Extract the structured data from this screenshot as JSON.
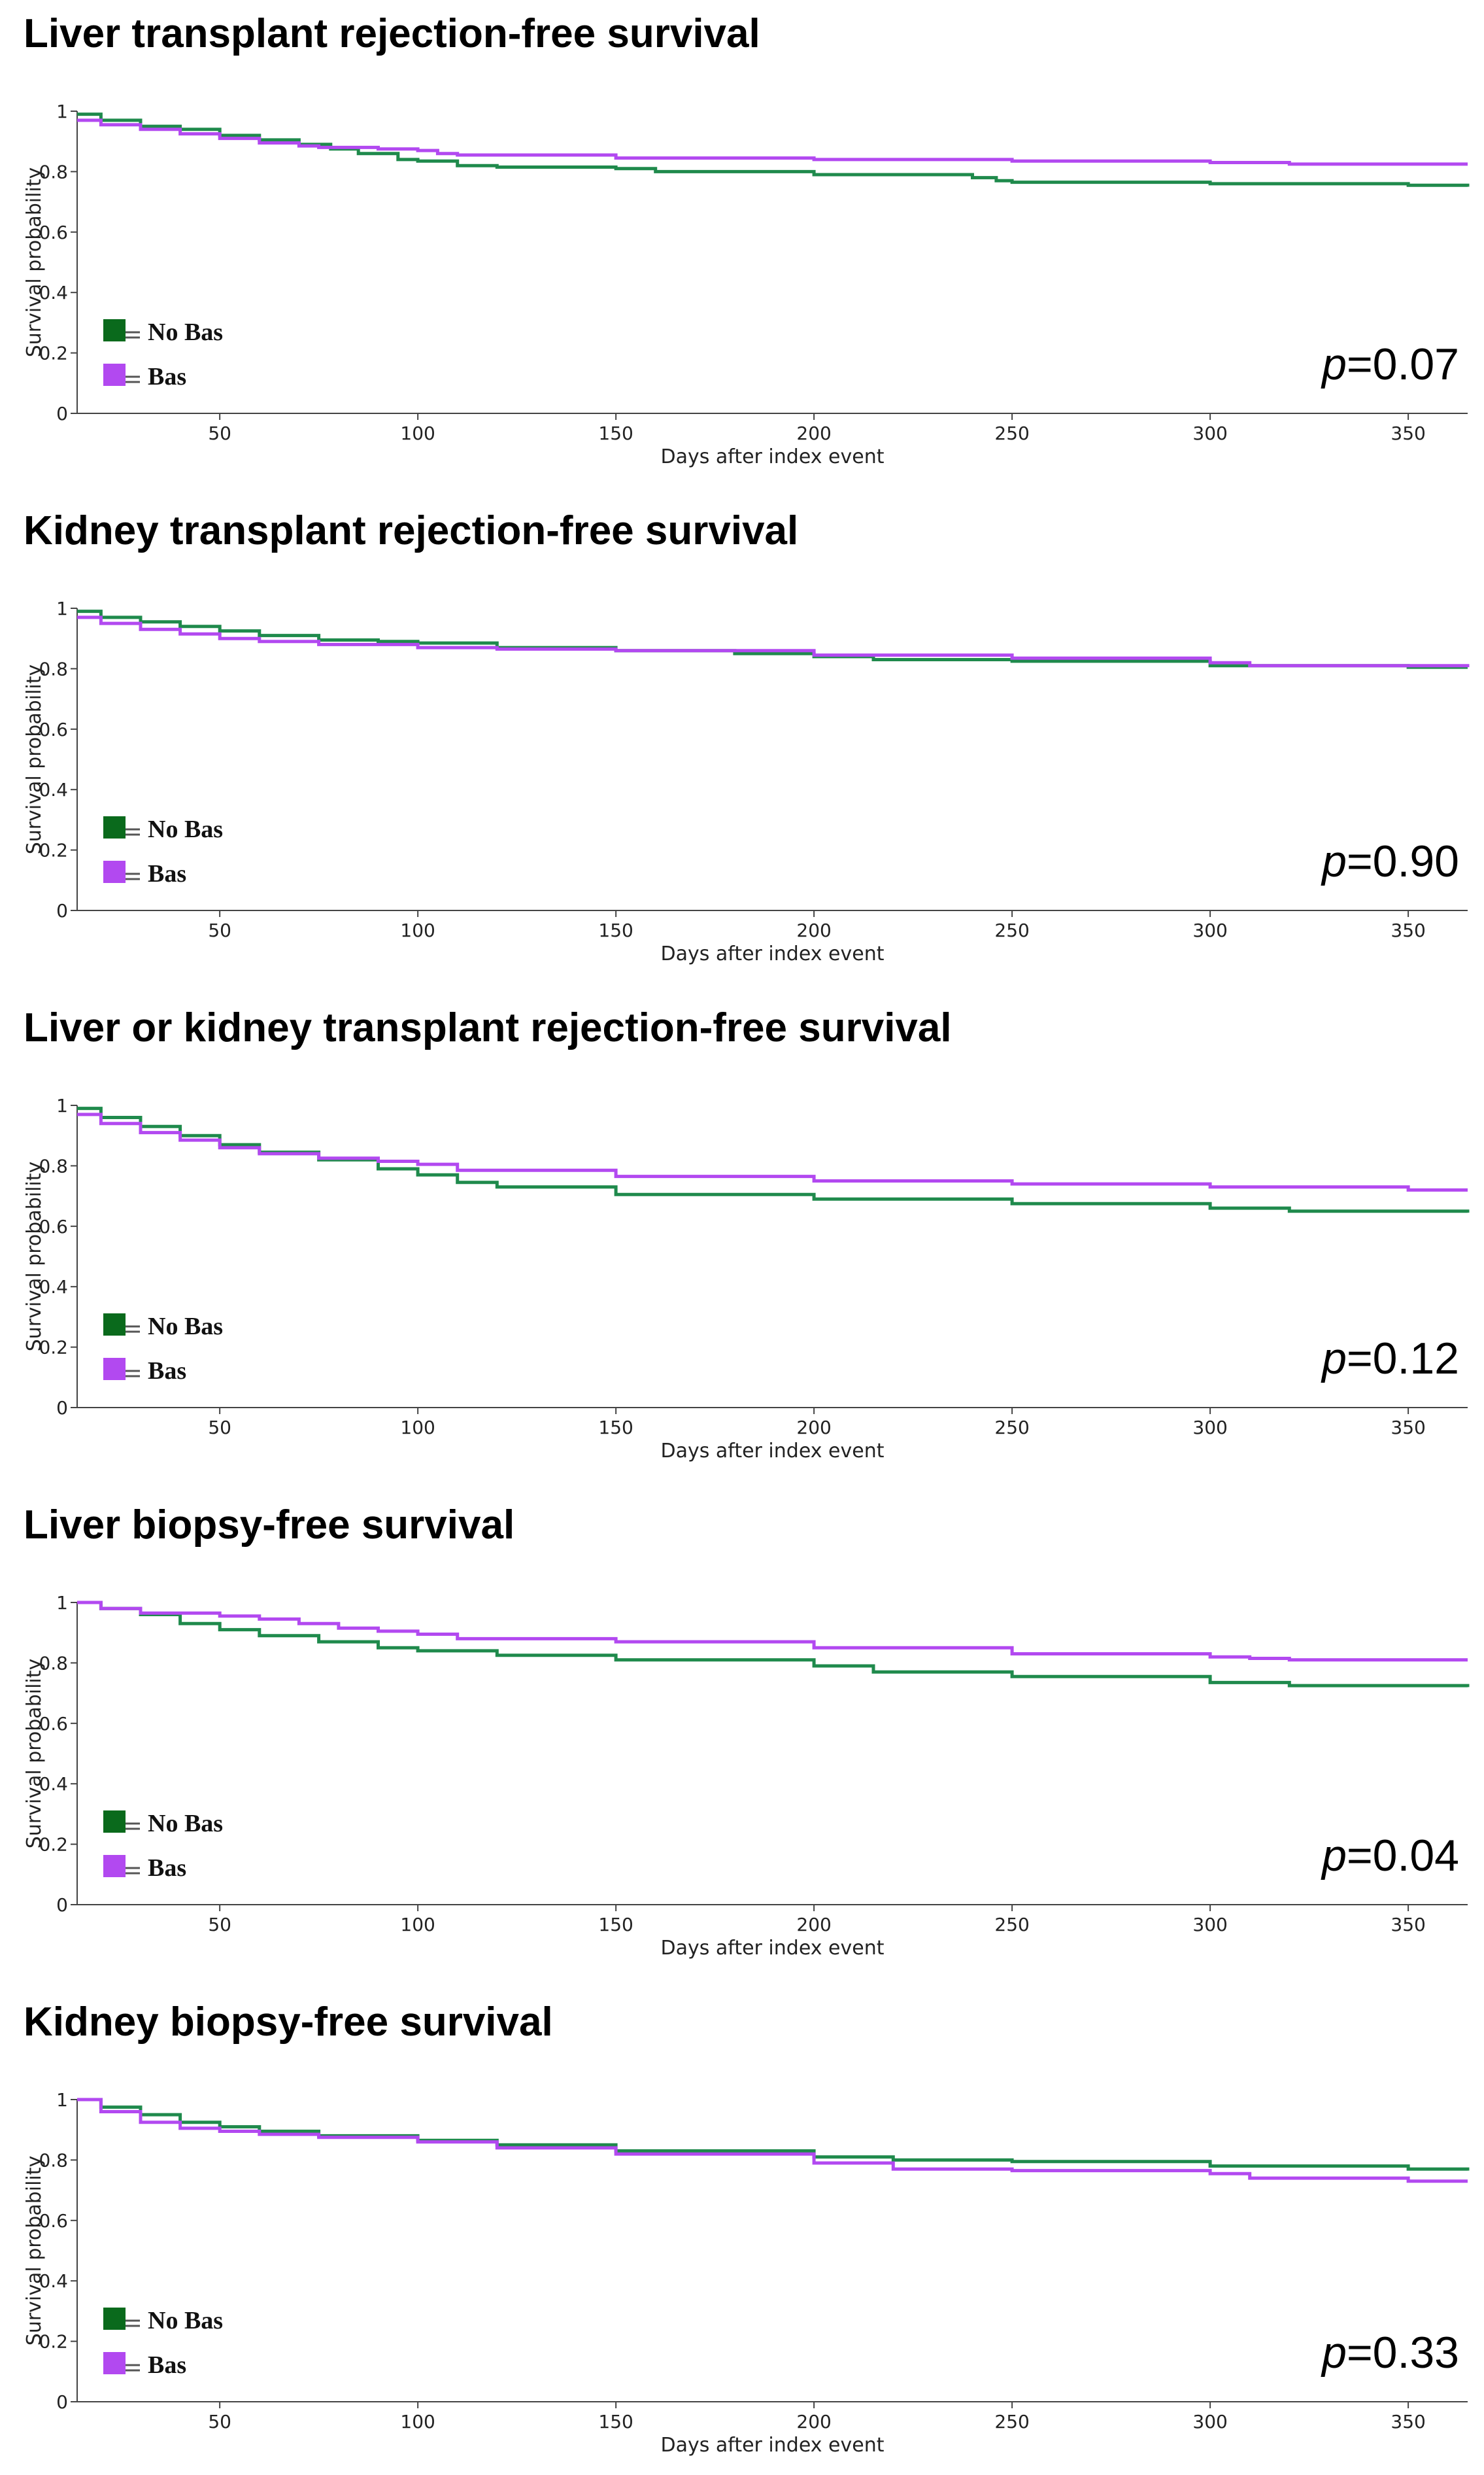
{
  "colors": {
    "no_bas": "#1f8a4c",
    "bas": "#b249f0",
    "no_bas_swatch": "#0a6a1c"
  },
  "chart_data": [
    {
      "type": "line",
      "title": "Liver transplant rejection-free survival",
      "xlabel": "Days after index event",
      "ylabel": "Survival probability",
      "xlim": [
        14,
        365
      ],
      "ylim": [
        0,
        1
      ],
      "xticks": [
        "50",
        "100",
        "150",
        "200",
        "250",
        "300",
        "350"
      ],
      "yticks": [
        "0",
        "0.2",
        "0.4",
        "0.6",
        "0.8",
        "1"
      ],
      "legend_labels": {
        "no_bas": "No Bas",
        "bas": "Bas"
      },
      "p_label": "p",
      "p_value": "=0.07",
      "series": [
        {
          "name": "No Bas",
          "x": [
            14,
            20,
            30,
            40,
            50,
            60,
            70,
            78,
            85,
            95,
            100,
            110,
            120,
            150,
            160,
            200,
            240,
            246,
            250,
            300,
            350,
            365
          ],
          "y": [
            0.99,
            0.97,
            0.95,
            0.94,
            0.92,
            0.905,
            0.89,
            0.875,
            0.86,
            0.84,
            0.835,
            0.82,
            0.815,
            0.81,
            0.8,
            0.79,
            0.78,
            0.77,
            0.765,
            0.76,
            0.755,
            0.75
          ]
        },
        {
          "name": "Bas",
          "x": [
            14,
            20,
            30,
            40,
            50,
            60,
            70,
            75,
            90,
            100,
            105,
            110,
            150,
            200,
            250,
            300,
            320,
            365
          ],
          "y": [
            0.97,
            0.955,
            0.94,
            0.925,
            0.91,
            0.895,
            0.885,
            0.88,
            0.875,
            0.87,
            0.86,
            0.855,
            0.845,
            0.84,
            0.835,
            0.83,
            0.825,
            0.825
          ]
        }
      ]
    },
    {
      "type": "line",
      "title": "Kidney transplant rejection-free survival",
      "xlabel": "Days after index event",
      "ylabel": "Survival probability",
      "xlim": [
        14,
        365
      ],
      "ylim": [
        0,
        1
      ],
      "xticks": [
        "50",
        "100",
        "150",
        "200",
        "250",
        "300",
        "350"
      ],
      "yticks": [
        "0",
        "0.2",
        "0.4",
        "0.6",
        "0.8",
        "1"
      ],
      "legend_labels": {
        "no_bas": "No Bas",
        "bas": "Bas"
      },
      "p_label": "p",
      "p_value": "=0.90",
      "series": [
        {
          "name": "No Bas",
          "x": [
            14,
            20,
            30,
            40,
            50,
            60,
            75,
            90,
            100,
            120,
            150,
            180,
            200,
            215,
            250,
            300,
            350,
            365
          ],
          "y": [
            0.99,
            0.97,
            0.955,
            0.94,
            0.925,
            0.91,
            0.895,
            0.89,
            0.885,
            0.87,
            0.86,
            0.85,
            0.84,
            0.83,
            0.825,
            0.81,
            0.805,
            0.805
          ]
        },
        {
          "name": "Bas",
          "x": [
            14,
            20,
            30,
            40,
            50,
            60,
            75,
            100,
            120,
            150,
            200,
            250,
            300,
            310,
            365
          ],
          "y": [
            0.97,
            0.95,
            0.93,
            0.915,
            0.9,
            0.89,
            0.88,
            0.87,
            0.865,
            0.86,
            0.845,
            0.835,
            0.82,
            0.81,
            0.805
          ]
        }
      ]
    },
    {
      "type": "line",
      "title": "Liver or kidney transplant rejection-free survival",
      "xlabel": "Days after index event",
      "ylabel": "Survival probability",
      "xlim": [
        14,
        365
      ],
      "ylim": [
        0,
        1
      ],
      "xticks": [
        "50",
        "100",
        "150",
        "200",
        "250",
        "300",
        "350"
      ],
      "yticks": [
        "0",
        "0.2",
        "0.4",
        "0.6",
        "0.8",
        "1"
      ],
      "legend_labels": {
        "no_bas": "No Bas",
        "bas": "Bas"
      },
      "p_label": "p",
      "p_value": "=0.12",
      "series": [
        {
          "name": "No Bas",
          "x": [
            14,
            20,
            30,
            40,
            50,
            60,
            75,
            90,
            100,
            110,
            120,
            150,
            200,
            250,
            300,
            320,
            365
          ],
          "y": [
            0.99,
            0.96,
            0.93,
            0.9,
            0.87,
            0.845,
            0.82,
            0.79,
            0.77,
            0.745,
            0.73,
            0.705,
            0.69,
            0.675,
            0.66,
            0.65,
            0.645
          ]
        },
        {
          "name": "Bas",
          "x": [
            14,
            20,
            30,
            40,
            50,
            60,
            75,
            90,
            100,
            110,
            150,
            200,
            250,
            300,
            350,
            365
          ],
          "y": [
            0.97,
            0.94,
            0.91,
            0.885,
            0.86,
            0.84,
            0.825,
            0.815,
            0.805,
            0.785,
            0.765,
            0.75,
            0.74,
            0.73,
            0.72,
            0.72
          ]
        }
      ]
    },
    {
      "type": "line",
      "title": "Liver biopsy-free survival",
      "xlabel": "Days after index event",
      "ylabel": "Survival probability",
      "xlim": [
        14,
        365
      ],
      "ylim": [
        0,
        1
      ],
      "xticks": [
        "50",
        "100",
        "150",
        "200",
        "250",
        "300",
        "350"
      ],
      "yticks": [
        "0",
        "0.2",
        "0.4",
        "0.6",
        "0.8",
        "1"
      ],
      "legend_labels": {
        "no_bas": "No Bas",
        "bas": "Bas"
      },
      "p_label": "p",
      "p_value": "=0.04",
      "series": [
        {
          "name": "No Bas",
          "x": [
            14,
            20,
            30,
            40,
            50,
            60,
            75,
            90,
            100,
            120,
            150,
            200,
            215,
            250,
            300,
            320,
            365
          ],
          "y": [
            1.0,
            0.98,
            0.96,
            0.93,
            0.91,
            0.89,
            0.87,
            0.85,
            0.84,
            0.825,
            0.81,
            0.79,
            0.77,
            0.755,
            0.735,
            0.725,
            0.72
          ]
        },
        {
          "name": "Bas",
          "x": [
            14,
            20,
            30,
            50,
            60,
            70,
            80,
            90,
            100,
            110,
            150,
            200,
            250,
            300,
            310,
            320,
            365
          ],
          "y": [
            1.0,
            0.98,
            0.965,
            0.955,
            0.945,
            0.93,
            0.915,
            0.905,
            0.895,
            0.88,
            0.87,
            0.85,
            0.83,
            0.82,
            0.815,
            0.81,
            0.81
          ]
        }
      ]
    },
    {
      "type": "line",
      "title": "Kidney biopsy-free survival",
      "xlabel": "Days after index event",
      "ylabel": "Survival probability",
      "xlim": [
        14,
        365
      ],
      "ylim": [
        0,
        1
      ],
      "xticks": [
        "50",
        "100",
        "150",
        "200",
        "250",
        "300",
        "350"
      ],
      "yticks": [
        "0",
        "0.2",
        "0.4",
        "0.6",
        "0.8",
        "1"
      ],
      "legend_labels": {
        "no_bas": "No Bas",
        "bas": "Bas"
      },
      "p_label": "p",
      "p_value": "=0.33",
      "series": [
        {
          "name": "No Bas",
          "x": [
            14,
            20,
            30,
            40,
            50,
            60,
            75,
            100,
            120,
            150,
            200,
            220,
            250,
            300,
            350,
            365
          ],
          "y": [
            1.0,
            0.975,
            0.95,
            0.925,
            0.91,
            0.895,
            0.88,
            0.865,
            0.85,
            0.83,
            0.81,
            0.8,
            0.795,
            0.78,
            0.77,
            0.765
          ]
        },
        {
          "name": "Bas",
          "x": [
            14,
            20,
            30,
            40,
            50,
            60,
            75,
            100,
            120,
            150,
            200,
            220,
            250,
            300,
            310,
            350,
            365
          ],
          "y": [
            1.0,
            0.96,
            0.925,
            0.905,
            0.895,
            0.885,
            0.875,
            0.86,
            0.84,
            0.82,
            0.79,
            0.77,
            0.765,
            0.755,
            0.74,
            0.73,
            0.73
          ]
        }
      ]
    }
  ]
}
